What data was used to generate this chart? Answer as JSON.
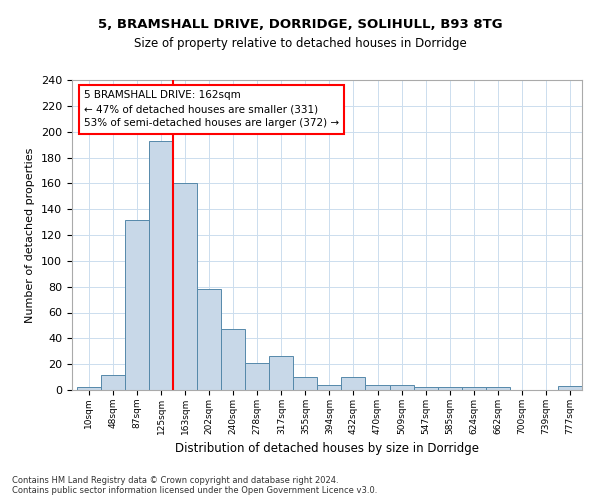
{
  "title1": "5, BRAMSHALL DRIVE, DORRIDGE, SOLIHULL, B93 8TG",
  "title2": "Size of property relative to detached houses in Dorridge",
  "xlabel": "Distribution of detached houses by size in Dorridge",
  "ylabel": "Number of detached properties",
  "bin_labels": [
    "10sqm",
    "48sqm",
    "87sqm",
    "125sqm",
    "163sqm",
    "202sqm",
    "240sqm",
    "278sqm",
    "317sqm",
    "355sqm",
    "394sqm",
    "432sqm",
    "470sqm",
    "509sqm",
    "547sqm",
    "585sqm",
    "624sqm",
    "662sqm",
    "700sqm",
    "739sqm",
    "777sqm"
  ],
  "bar_heights": [
    2,
    12,
    132,
    193,
    160,
    78,
    47,
    21,
    26,
    10,
    4,
    10,
    4,
    4,
    2,
    2,
    2,
    2,
    0,
    0,
    3
  ],
  "bar_color": "#c8d8e8",
  "bar_edge_color": "#5588aa",
  "annotation_text": "5 BRAMSHALL DRIVE: 162sqm\n← 47% of detached houses are smaller (331)\n53% of semi-detached houses are larger (372) →",
  "annotation_box_color": "white",
  "annotation_box_edge_color": "red",
  "vline_color": "red",
  "footer1": "Contains HM Land Registry data © Crown copyright and database right 2024.",
  "footer2": "Contains public sector information licensed under the Open Government Licence v3.0.",
  "bg_color": "white",
  "grid_color": "#ccddee",
  "ylim": [
    0,
    240
  ],
  "yticks": [
    0,
    20,
    40,
    60,
    80,
    100,
    120,
    140,
    160,
    180,
    200,
    220,
    240
  ]
}
